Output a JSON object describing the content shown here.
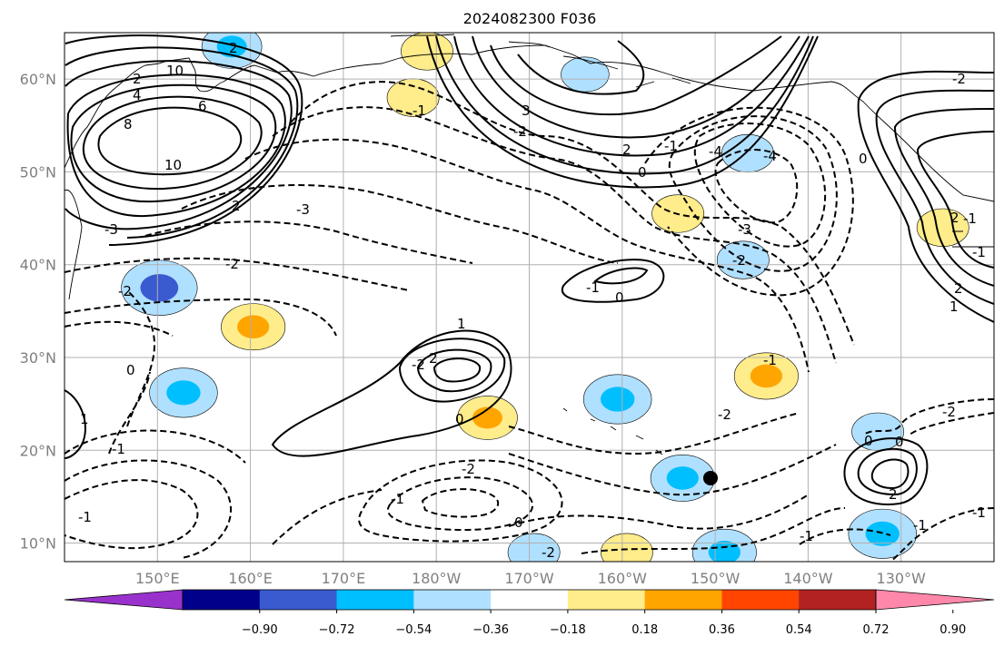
{
  "title": "2024082300 F036",
  "map": {
    "lon_range": [
      140,
      240
    ],
    "lat_range": [
      8,
      65
    ],
    "lat_ticks": [
      {
        "value": 10,
        "label": "10°N"
      },
      {
        "value": 20,
        "label": "20°N"
      },
      {
        "value": 30,
        "label": "30°N"
      },
      {
        "value": 40,
        "label": "40°N"
      },
      {
        "value": 50,
        "label": "50°N"
      },
      {
        "value": 60,
        "label": "60°N"
      }
    ],
    "lon_ticks": [
      {
        "value": 150,
        "label": "150°E"
      },
      {
        "value": 160,
        "label": "160°E"
      },
      {
        "value": 170,
        "label": "170°E"
      },
      {
        "value": 180,
        "label": "180°W"
      },
      {
        "value": 190,
        "label": "170°W"
      },
      {
        "value": 200,
        "label": "160°W"
      },
      {
        "value": 210,
        "label": "150°W"
      },
      {
        "value": 220,
        "label": "140°W"
      },
      {
        "value": 230,
        "label": "130°W"
      }
    ],
    "contour_labels": [
      "2",
      "10",
      "2",
      "4",
      "6",
      "8",
      "10",
      "2",
      "3",
      "2",
      "0",
      "-1",
      "-2",
      "-3",
      "-4",
      "-3",
      "-2",
      "-4",
      "-3",
      "-2",
      "-2",
      "2",
      "-2",
      "-1",
      "0",
      "1",
      "2",
      "0",
      "-1",
      "-2",
      "-1",
      "-2",
      "0",
      "-1",
      "0",
      "1",
      "2",
      "-1",
      "-1",
      "0",
      "-2",
      "-1",
      "-2",
      "-1",
      "0",
      "1",
      "2",
      "-1",
      "-1",
      "-1",
      "0",
      "-2"
    ],
    "marker": {
      "lon": 209.5,
      "lat": 17,
      "color": "#000000"
    },
    "shading": [
      {
        "lon": 150.2,
        "lat": 37.5,
        "value": -0.6
      },
      {
        "lon": 152.8,
        "lat": 26.2,
        "value": -0.5
      },
      {
        "lon": 158.0,
        "lat": 63.5,
        "value": -0.4
      },
      {
        "lon": 160.3,
        "lat": 33.3,
        "value": 0.45
      },
      {
        "lon": 179.0,
        "lat": 63.0,
        "value": 0.3
      },
      {
        "lon": 177.5,
        "lat": 58.0,
        "value": 0.3
      },
      {
        "lon": 196.0,
        "lat": 60.5,
        "value": -0.25
      },
      {
        "lon": 199.5,
        "lat": 25.5,
        "value": -0.5
      },
      {
        "lon": 185.5,
        "lat": 23.5,
        "value": 0.4
      },
      {
        "lon": 206.0,
        "lat": 45.5,
        "value": 0.3
      },
      {
        "lon": 213.5,
        "lat": 52.0,
        "value": -0.3
      },
      {
        "lon": 213.0,
        "lat": 40.5,
        "value": -0.3
      },
      {
        "lon": 215.5,
        "lat": 28.0,
        "value": 0.45
      },
      {
        "lon": 206.5,
        "lat": 17.0,
        "value": -0.45
      },
      {
        "lon": 228.0,
        "lat": 11.0,
        "value": -0.5
      },
      {
        "lon": 234.5,
        "lat": 44.0,
        "value": 0.3
      },
      {
        "lon": 190.5,
        "lat": 9.0,
        "value": -0.3
      },
      {
        "lon": 200.5,
        "lat": 9.0,
        "value": 0.3
      },
      {
        "lon": 211.0,
        "lat": 9.0,
        "value": -0.45
      },
      {
        "lon": 227.5,
        "lat": 22.0,
        "value": -0.3
      }
    ]
  },
  "colorbar": {
    "colors": [
      "#9932CC",
      "#00008B",
      "#3A5BCF",
      "#00BFFF",
      "#B0E0FF",
      "#FFFFFF",
      "#FFEC8B",
      "#FFA500",
      "#FF4500",
      "#B22222",
      "#FF88AA"
    ],
    "tick_labels": [
      "−0.90",
      "−0.72",
      "−0.54",
      "−0.36",
      "−0.18",
      "0.18",
      "0.36",
      "0.54",
      "0.72",
      "0.90"
    ]
  }
}
